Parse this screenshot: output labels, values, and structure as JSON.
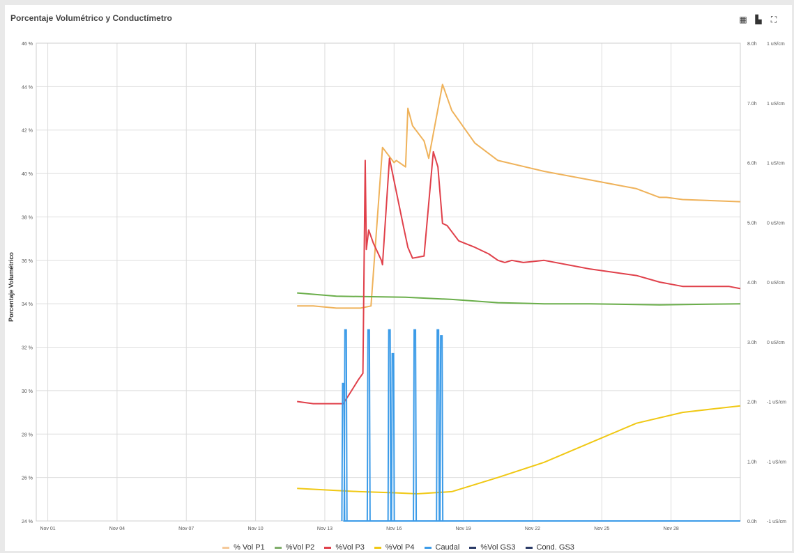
{
  "title": "Porcentaje Volumétrico y Conductímetro",
  "toolbar": [
    {
      "name": "table-icon",
      "glyph": "▦"
    },
    {
      "name": "document-icon",
      "glyph": "▙"
    },
    {
      "name": "fullscreen-icon",
      "glyph": "⛶"
    }
  ],
  "chart_data": {
    "type": "line",
    "ylabel": "Porcentaje Volumétrico",
    "x_ticks": [
      "Nov 01",
      "Nov 04",
      "Nov 07",
      "Nov 10",
      "Nov 13",
      "Nov 16",
      "Nov 19",
      "Nov 22",
      "Nov 25",
      "Nov 28"
    ],
    "xlim": [
      0,
      30.5
    ],
    "left_axis": {
      "ylim": [
        24,
        46
      ],
      "ticks": [
        "24 %",
        "26 %",
        "28 %",
        "30 %",
        "32 %",
        "34 %",
        "36 %",
        "38 %",
        "40 %",
        "42 %",
        "44 %",
        "46 %"
      ]
    },
    "right_axis_1": {
      "ylim": [
        0,
        8
      ],
      "ticks": [
        "0.0h",
        "1.0h",
        "2.0h",
        "3.0h",
        "4.0h",
        "5.0h",
        "6.0h",
        "7.0h",
        "8.0h"
      ]
    },
    "right_axis_2": {
      "ticks": [
        "-1 uS/cm",
        "-1 uS/cm",
        "-1 uS/cm",
        "0 uS/cm",
        "0 uS/cm",
        "0 uS/cm",
        "1 uS/cm",
        "1 uS/cm",
        "1 uS/cm"
      ]
    },
    "legend": [
      {
        "name": "% Vol P1",
        "color": "#f5c99a"
      },
      {
        "name": "%Vol P2",
        "color": "#7fae6a"
      },
      {
        "name": "%Vol P3",
        "color": "#e0404a"
      },
      {
        "name": "%Vol P4",
        "color": "#f0c814"
      },
      {
        "name": "Caudal",
        "color": "#3b9be8"
      },
      {
        "name": "%Vol GS3",
        "color": "#2a3a66"
      },
      {
        "name": "Cond. GS3",
        "color": "#2a3a66"
      }
    ],
    "series": [
      {
        "name": "% Vol P1",
        "color": "#efb25a",
        "axis": "left",
        "x": [
          11.3,
          12,
          13,
          14,
          14.05,
          14.5,
          15,
          15.5,
          15.6,
          16,
          16.1,
          16.3,
          16.8,
          17,
          17.6,
          18,
          19,
          20,
          22,
          24,
          26,
          27,
          27.3,
          28,
          30.5
        ],
        "y": [
          33.9,
          33.9,
          33.8,
          33.8,
          33.8,
          33.9,
          41.2,
          40.5,
          40.6,
          40.3,
          43.0,
          42.2,
          41.5,
          40.7,
          44.1,
          42.9,
          41.4,
          40.6,
          40.1,
          39.7,
          39.3,
          38.9,
          38.9,
          38.8,
          38.7
        ]
      },
      {
        "name": "%Vol P2",
        "color": "#6aae4a",
        "axis": "left",
        "x": [
          11.3,
          13,
          16,
          18,
          20,
          22,
          24,
          27,
          30.5
        ],
        "y": [
          34.5,
          34.35,
          34.3,
          34.2,
          34.05,
          34.0,
          34.0,
          33.95,
          34.0
        ]
      },
      {
        "name": "%Vol P3",
        "color": "#e0404a",
        "axis": "left",
        "x": [
          11.3,
          12,
          13.3,
          13.6,
          13.95,
          14.15,
          14.25,
          14.3,
          14.4,
          14.6,
          14.95,
          15,
          15.3,
          15.9,
          16.1,
          16.3,
          16.8,
          17.2,
          17.4,
          17.6,
          17.8,
          18.3,
          19,
          19.6,
          20,
          20.3,
          20.6,
          21.1,
          22,
          24,
          26,
          27,
          28,
          30,
          30.5
        ],
        "y": [
          29.5,
          29.4,
          29.4,
          29.9,
          30.5,
          30.8,
          40.6,
          36.5,
          37.4,
          36.8,
          36.0,
          35.8,
          40.7,
          37.6,
          36.6,
          36.1,
          36.2,
          41.0,
          40.3,
          37.7,
          37.6,
          36.9,
          36.6,
          36.3,
          36.0,
          35.9,
          36.0,
          35.9,
          36.0,
          35.6,
          35.3,
          35.0,
          34.8,
          34.8,
          34.7
        ]
      },
      {
        "name": "%Vol P4",
        "color": "#f0c814",
        "axis": "left",
        "x": [
          11.3,
          13,
          14,
          15.5,
          16.5,
          18,
          20,
          22,
          24,
          26,
          28,
          30.5
        ],
        "y": [
          25.5,
          25.4,
          25.35,
          25.3,
          25.25,
          25.35,
          26.0,
          26.7,
          27.6,
          28.5,
          29.0,
          29.3
        ]
      },
      {
        "name": "Caudal",
        "color": "#3b9be8",
        "axis": "right_axis_1",
        "type": "spikes",
        "x": [
          13.3,
          13.4,
          14.4,
          15.3,
          15.45,
          16.4,
          17.4,
          17.55
        ],
        "y": [
          2.3,
          3.2,
          3.2,
          3.2,
          2.8,
          3.2,
          3.2,
          3.1
        ]
      }
    ]
  }
}
